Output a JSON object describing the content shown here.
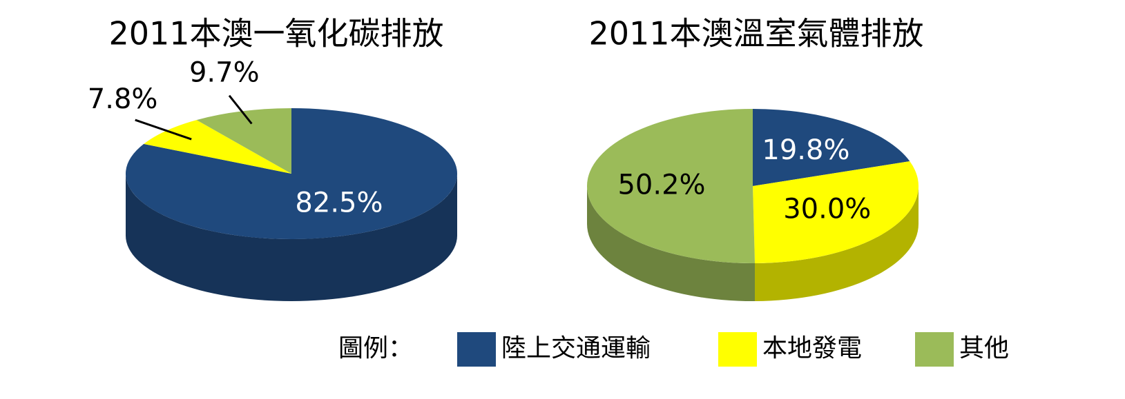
{
  "legend_title": "圖例：",
  "chart_data": [
    {
      "type": "pie3d",
      "title": "2011本澳一氧化碳排放",
      "categories": [
        "陸上交通運輸",
        "本地發電",
        "其他"
      ],
      "values": [
        82.5,
        7.8,
        9.7
      ],
      "value_labels": [
        "82.5%",
        "7.8%",
        "9.7%"
      ],
      "colors": [
        "#1f497d",
        "#ffff00",
        "#9bbb59"
      ]
    },
    {
      "type": "pie3d",
      "title": "2011本澳溫室氣體排放",
      "categories": [
        "陸上交通運輸",
        "本地發電",
        "其他"
      ],
      "values": [
        19.8,
        30.0,
        50.2
      ],
      "value_labels": [
        "19.8%",
        "30.0%",
        "50.2%"
      ],
      "colors": [
        "#1f497d",
        "#ffff00",
        "#9bbb59"
      ]
    }
  ]
}
